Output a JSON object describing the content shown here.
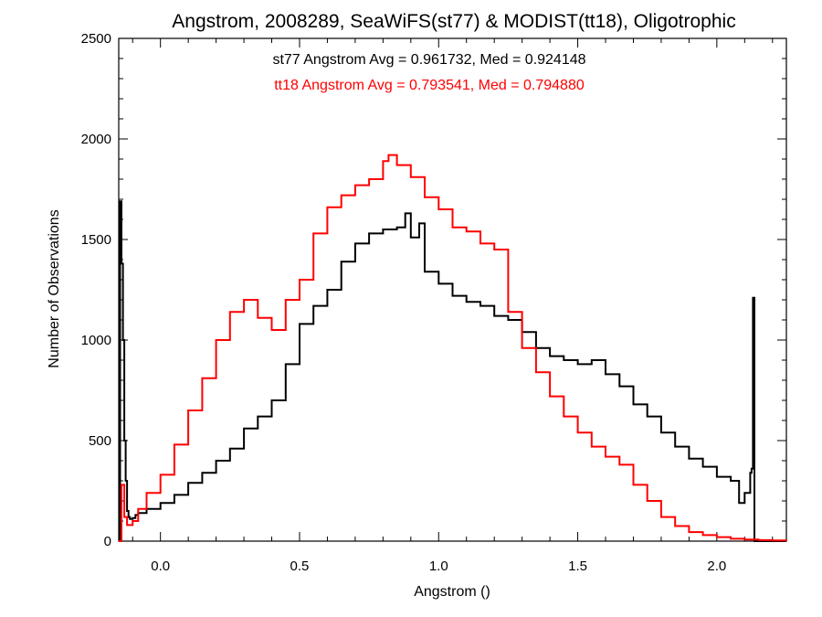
{
  "chart_data": {
    "type": "line",
    "title": "Angstrom, 2008289, SeaWiFS(st77) & MODIST(tt18), Oligotrophic",
    "xlabel": "Angstrom ()",
    "ylabel": "Number of Observations",
    "xlim": [
      -0.15,
      2.25
    ],
    "ylim": [
      0,
      2500
    ],
    "xticks": [
      "0.0",
      "0.5",
      "1.0",
      "1.5",
      "2.0"
    ],
    "xtick_values": [
      0.0,
      0.5,
      1.0,
      1.5,
      2.0
    ],
    "yticks": [
      "0",
      "500",
      "1000",
      "1500",
      "2000",
      "2500"
    ],
    "ytick_values": [
      0,
      500,
      1000,
      1500,
      2000,
      2500
    ],
    "grid": false,
    "annotations": [
      {
        "text": "st77 Angstrom Avg = 0.961732, Med = 0.924148",
        "color": "#000000"
      },
      {
        "text": "tt18 Angstrom Avg = 0.793541, Med = 0.794880",
        "color": "#ff0000"
      }
    ],
    "series": [
      {
        "color": "#000000",
        "x": [
          -0.15,
          -0.145,
          -0.14,
          -0.135,
          -0.13,
          -0.125,
          -0.12,
          -0.115,
          -0.11,
          -0.1,
          -0.09,
          -0.08,
          -0.05,
          0.0,
          0.05,
          0.1,
          0.15,
          0.2,
          0.25,
          0.3,
          0.35,
          0.4,
          0.45,
          0.5,
          0.55,
          0.6,
          0.65,
          0.7,
          0.75,
          0.8,
          0.85,
          0.88,
          0.9,
          0.93,
          0.95,
          1.0,
          1.05,
          1.1,
          1.15,
          1.2,
          1.25,
          1.3,
          1.35,
          1.4,
          1.45,
          1.5,
          1.55,
          1.6,
          1.65,
          1.7,
          1.75,
          1.8,
          1.85,
          1.9,
          1.95,
          2.0,
          2.05,
          2.08,
          2.1,
          2.12,
          2.125,
          2.13,
          2.135,
          2.14,
          2.15,
          2.2,
          2.25
        ],
        "values": [
          0,
          1690,
          1380,
          1000,
          500,
          300,
          150,
          120,
          110,
          115,
          130,
          140,
          160,
          190,
          230,
          290,
          340,
          400,
          460,
          560,
          620,
          700,
          880,
          1080,
          1170,
          1250,
          1390,
          1480,
          1530,
          1550,
          1560,
          1630,
          1510,
          1580,
          1340,
          1280,
          1220,
          1190,
          1170,
          1120,
          1100,
          1040,
          960,
          920,
          900,
          880,
          900,
          830,
          770,
          680,
          620,
          540,
          470,
          410,
          370,
          320,
          300,
          190,
          240,
          340,
          360,
          1210,
          0,
          0,
          0,
          0,
          0
        ]
      },
      {
        "color": "#ff0000",
        "x": [
          -0.15,
          -0.14,
          -0.13,
          -0.12,
          -0.1,
          -0.08,
          -0.05,
          0.0,
          0.05,
          0.1,
          0.15,
          0.2,
          0.25,
          0.3,
          0.35,
          0.4,
          0.45,
          0.5,
          0.55,
          0.6,
          0.65,
          0.7,
          0.75,
          0.8,
          0.82,
          0.85,
          0.9,
          0.95,
          1.0,
          1.05,
          1.1,
          1.15,
          1.2,
          1.25,
          1.3,
          1.35,
          1.4,
          1.45,
          1.5,
          1.55,
          1.6,
          1.65,
          1.7,
          1.75,
          1.8,
          1.85,
          1.9,
          1.95,
          2.0,
          2.05,
          2.1,
          2.15,
          2.2,
          2.25
        ],
        "values": [
          0,
          280,
          120,
          80,
          100,
          160,
          240,
          330,
          480,
          650,
          810,
          1000,
          1140,
          1200,
          1110,
          1050,
          1200,
          1300,
          1530,
          1660,
          1720,
          1770,
          1800,
          1890,
          1920,
          1870,
          1810,
          1710,
          1650,
          1560,
          1540,
          1480,
          1450,
          1140,
          960,
          840,
          720,
          620,
          540,
          470,
          420,
          380,
          280,
          200,
          120,
          75,
          45,
          30,
          20,
          12,
          8,
          5,
          3,
          2
        ]
      }
    ]
  }
}
